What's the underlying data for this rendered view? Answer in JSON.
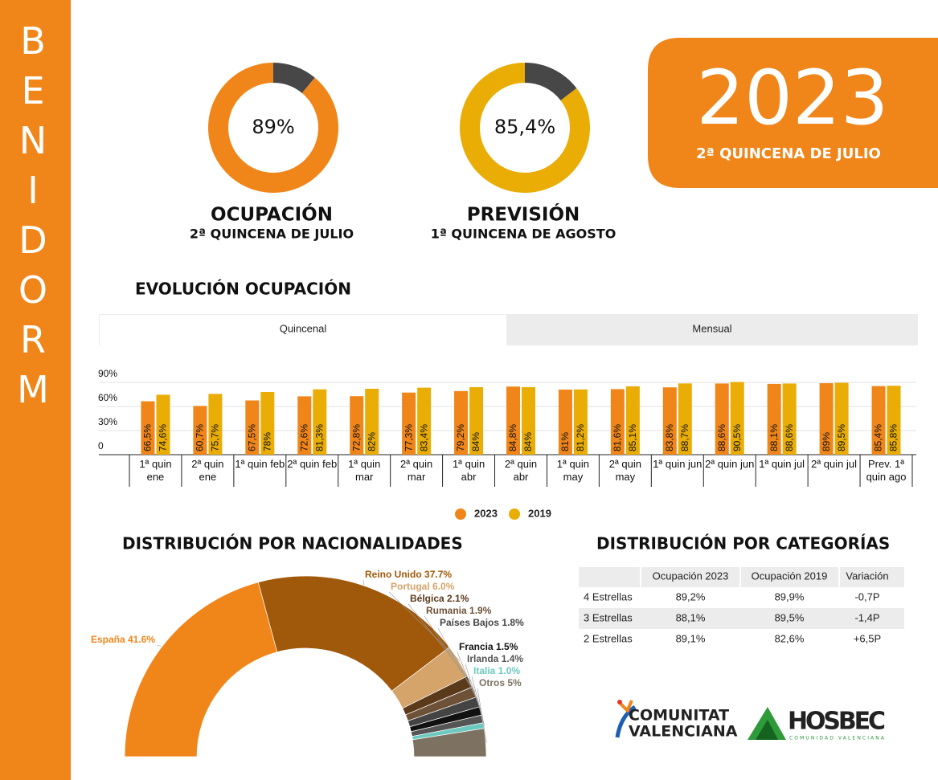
{
  "sidebar": {
    "title": "BENIDORM"
  },
  "header": {
    "year": "2023",
    "subtitle": "2ª QUINCENA DE JULIO"
  },
  "chart_data": [
    {
      "type": "donut",
      "title": "OCUPACIÓN",
      "subtitle": "2ª QUINCENA DE JULIO",
      "values": [
        89,
        11
      ],
      "value_labels": [
        "89%",
        null
      ],
      "colors": [
        "#f0861a",
        "#474747"
      ]
    },
    {
      "type": "donut",
      "title": "PREVISIÓN",
      "subtitle": "1ª QUINCENA DE AGOSTO",
      "values": [
        85.4,
        14.6
      ],
      "value_labels": [
        "85,4%",
        null
      ],
      "colors": [
        "#e9ad05",
        "#474747"
      ]
    },
    {
      "type": "bar",
      "title": "EVOLUCIÓN OCUPACIÓN",
      "tabs": [
        "Quincenal",
        "Mensual"
      ],
      "categories": [
        "1ª quin ene",
        "2ª quin ene",
        "1ª quin feb",
        "2ª quin feb",
        "1ª quin mar",
        "2ª quin mar",
        "1ª quin abr",
        "2ª quin abr",
        "1ª quin may",
        "2ª quin may",
        "1ª quin jun",
        "2ª quin jun",
        "1ª quin jul",
        "2ª quin jul",
        "Prev. 1ª quin ago"
      ],
      "series": [
        {
          "name": "2023",
          "color": "#f0861a",
          "values": [
            66.5,
            60.7,
            67.5,
            72.6,
            72.8,
            77.3,
            79.2,
            84.8,
            81,
            81.6,
            83.8,
            88.6,
            88.1,
            89,
            85.4
          ],
          "value_labels": [
            "66,5%",
            "60,7%",
            "67,5%",
            "72,6%",
            "72,8%",
            "77,3%",
            "79,2%",
            "84,8%",
            "81%",
            "81,6%",
            "83,8%",
            "88,6%",
            "88,1%",
            "89%",
            "85,4%"
          ]
        },
        {
          "name": "2019",
          "color": "#e9ad05",
          "values": [
            74.6,
            75.7,
            78,
            81.3,
            82,
            83.4,
            84,
            84,
            81.2,
            85.1,
            88.7,
            90.5,
            88.6,
            89.5,
            85.8
          ],
          "value_labels": [
            "74,6%",
            "75,7%",
            "78%",
            "81,3%",
            "82%",
            "83,4%",
            "84%",
            "84%",
            "81,2%",
            "85,1%",
            "88,7%",
            "90,5%",
            "88,6%",
            "89,5%",
            "85,8%"
          ]
        }
      ],
      "ylim": [
        0,
        100
      ],
      "yticks": [
        0,
        {
          "value": 30,
          "label": "30%"
        },
        {
          "value": 60,
          "label": "60%"
        },
        {
          "value": 90,
          "label": "90%"
        }
      ],
      "grid": true
    },
    {
      "type": "half-donut",
      "title": "DISTRIBUCIÓN POR NACIONALIDADES",
      "categories": [
        "España",
        "Reino Unido",
        "Portugal",
        "Bélgica",
        "Rumania",
        "Países Bajos",
        "Francia",
        "Irlanda",
        "Italia",
        "Otros"
      ],
      "values": [
        41.6,
        37.7,
        6.0,
        2.1,
        1.9,
        1.8,
        1.5,
        1.4,
        1.0,
        5
      ],
      "value_labels": [
        "41.6%",
        "37.7%",
        "6.0%",
        "2.1%",
        "1.9%",
        "1.8%",
        "1.5%",
        "1.4%",
        "1.0%",
        "5%"
      ],
      "colors": [
        "#f0861a",
        "#a0580a",
        "#d4a46a",
        "#5b3a1c",
        "#6e5238",
        "#444444",
        "#111111",
        "#555555",
        "#6cc9bf",
        "#7d7262"
      ]
    }
  ],
  "table": {
    "title": "DISTRIBUCIÓN POR CATEGORÍAS",
    "header": [
      "Ocupación 2023",
      "Ocupación 2019",
      "Variación"
    ],
    "rows": [
      [
        "4 Estrellas",
        "89,2%",
        "89,9%",
        "-0,7P"
      ],
      [
        "3 Estrellas",
        "88,1%",
        "89,5%",
        "-1,4P"
      ],
      [
        "2 Estrellas",
        "89,1%",
        "82,6%",
        "+6,5P"
      ]
    ]
  },
  "logos": {
    "comunitat": [
      "COMUNITAT",
      "VALENCIANA"
    ],
    "hosbec": "HOSBEC",
    "hosbec_sub": "COMUNIDAD VALENCIANA"
  }
}
